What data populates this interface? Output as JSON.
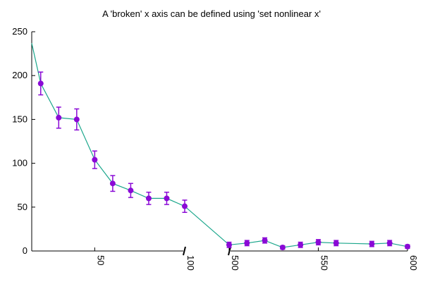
{
  "chart_data": {
    "type": "line",
    "title": "A 'broken' x axis can be defined using 'set nonlinear x'",
    "xlabel": "",
    "ylabel": "",
    "ylim": [
      0,
      250
    ],
    "y_ticks": [
      0,
      50,
      100,
      150,
      200,
      250
    ],
    "x_segments": [
      {
        "range": [
          15,
          100
        ],
        "ticks": [
          50,
          100
        ]
      },
      {
        "range": [
          500,
          600
        ],
        "ticks": [
          500,
          550,
          600
        ]
      }
    ],
    "x_tick_labels_rotated": true,
    "broken_axis": true,
    "grid": false,
    "line_color": "#1aa68b",
    "point_color": "#8a0ad6",
    "line_points": [
      {
        "x": 15,
        "y": 237
      },
      {
        "x": 20,
        "y": 191
      },
      {
        "x": 30,
        "y": 152
      },
      {
        "x": 40,
        "y": 150
      },
      {
        "x": 50,
        "y": 104
      },
      {
        "x": 60,
        "y": 77
      },
      {
        "x": 70,
        "y": 69
      },
      {
        "x": 80,
        "y": 60
      },
      {
        "x": 90,
        "y": 60
      },
      {
        "x": 100,
        "y": 51
      },
      {
        "x": 500,
        "y": 7
      },
      {
        "x": 510,
        "y": 9
      },
      {
        "x": 520,
        "y": 12
      },
      {
        "x": 530,
        "y": 4
      },
      {
        "x": 540,
        "y": 7
      },
      {
        "x": 550,
        "y": 10
      },
      {
        "x": 560,
        "y": 9
      },
      {
        "x": 580,
        "y": 8
      },
      {
        "x": 590,
        "y": 9
      },
      {
        "x": 600,
        "y": 5
      }
    ],
    "points": [
      {
        "x": 20,
        "y": 191,
        "err": 13
      },
      {
        "x": 30,
        "y": 152,
        "err": 12
      },
      {
        "x": 40,
        "y": 150,
        "err": 12
      },
      {
        "x": 50,
        "y": 104,
        "err": 10
      },
      {
        "x": 60,
        "y": 77,
        "err": 9
      },
      {
        "x": 70,
        "y": 69,
        "err": 8
      },
      {
        "x": 80,
        "y": 60,
        "err": 7
      },
      {
        "x": 90,
        "y": 60,
        "err": 7
      },
      {
        "x": 100,
        "y": 51,
        "err": 7
      },
      {
        "x": 500,
        "y": 7,
        "err": 3
      },
      {
        "x": 510,
        "y": 9,
        "err": 3
      },
      {
        "x": 520,
        "y": 12,
        "err": 3
      },
      {
        "x": 530,
        "y": 4,
        "err": 2
      },
      {
        "x": 540,
        "y": 7,
        "err": 3
      },
      {
        "x": 550,
        "y": 10,
        "err": 3
      },
      {
        "x": 560,
        "y": 9,
        "err": 3
      },
      {
        "x": 580,
        "y": 8,
        "err": 3
      },
      {
        "x": 590,
        "y": 9,
        "err": 3
      },
      {
        "x": 600,
        "y": 5,
        "err": 2
      }
    ]
  }
}
